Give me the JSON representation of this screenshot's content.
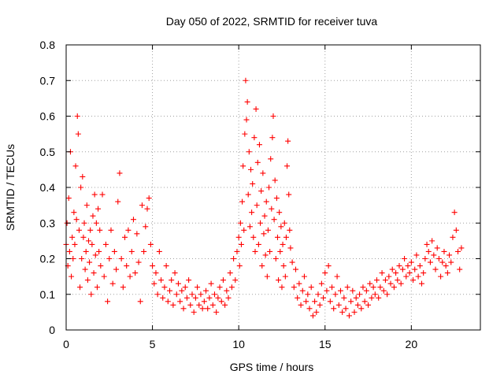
{
  "chart_data": {
    "type": "scatter",
    "title": "Day 050 of 2022, SRMTID for receiver tuva",
    "xlabel": "GPS time / hours",
    "ylabel": "SRMTID / TECUs",
    "xlim": [
      0,
      24
    ],
    "ylim": [
      0,
      0.8
    ],
    "xticks": [
      0,
      5,
      10,
      15,
      20
    ],
    "xtick_labels": [
      "0",
      "5",
      "10",
      "15",
      "20"
    ],
    "yticks": [
      0,
      0.1,
      0.2,
      0.3,
      0.4,
      0.5,
      0.6,
      0.7,
      0.8
    ],
    "ytick_labels": [
      "0",
      "0.1",
      "0.2",
      "0.3",
      "0.4",
      "0.5",
      "0.6",
      "0.7",
      "0.8"
    ],
    "grid": true,
    "marker": "+",
    "color": "#ff0000",
    "series": [
      {
        "name": "SRMTID",
        "points": [
          [
            0.0,
            0.24
          ],
          [
            0.05,
            0.3
          ],
          [
            0.1,
            0.18
          ],
          [
            0.15,
            0.37
          ],
          [
            0.2,
            0.22
          ],
          [
            0.25,
            0.5
          ],
          [
            0.3,
            0.15
          ],
          [
            0.35,
            0.26
          ],
          [
            0.4,
            0.2
          ],
          [
            0.45,
            0.33
          ],
          [
            0.5,
            0.24
          ],
          [
            0.55,
            0.46
          ],
          [
            0.6,
            0.31
          ],
          [
            0.65,
            0.6
          ],
          [
            0.7,
            0.55
          ],
          [
            0.75,
            0.28
          ],
          [
            0.8,
            0.12
          ],
          [
            0.85,
            0.4
          ],
          [
            0.9,
            0.2
          ],
          [
            0.95,
            0.43
          ],
          [
            1.0,
            0.26
          ],
          [
            1.05,
            0.3
          ],
          [
            1.1,
            0.17
          ],
          [
            1.15,
            0.22
          ],
          [
            1.2,
            0.35
          ],
          [
            1.25,
            0.14
          ],
          [
            1.3,
            0.25
          ],
          [
            1.35,
            0.19
          ],
          [
            1.4,
            0.28
          ],
          [
            1.45,
            0.1
          ],
          [
            1.5,
            0.24
          ],
          [
            1.55,
            0.32
          ],
          [
            1.6,
            0.16
          ],
          [
            1.65,
            0.38
          ],
          [
            1.7,
            0.21
          ],
          [
            1.75,
            0.3
          ],
          [
            1.8,
            0.12
          ],
          [
            1.85,
            0.34
          ],
          [
            1.9,
            0.22
          ],
          [
            1.95,
            0.28
          ],
          [
            2.0,
            0.18
          ],
          [
            2.1,
            0.38
          ],
          [
            2.2,
            0.15
          ],
          [
            2.3,
            0.24
          ],
          [
            2.4,
            0.08
          ],
          [
            2.5,
            0.2
          ],
          [
            2.6,
            0.28
          ],
          [
            2.7,
            0.13
          ],
          [
            2.8,
            0.22
          ],
          [
            2.9,
            0.17
          ],
          [
            3.0,
            0.36
          ],
          [
            3.1,
            0.44
          ],
          [
            3.2,
            0.2
          ],
          [
            3.3,
            0.12
          ],
          [
            3.4,
            0.26
          ],
          [
            3.5,
            0.18
          ],
          [
            3.6,
            0.28
          ],
          [
            3.7,
            0.15
          ],
          [
            3.8,
            0.22
          ],
          [
            3.9,
            0.31
          ],
          [
            4.0,
            0.16
          ],
          [
            4.1,
            0.27
          ],
          [
            4.2,
            0.19
          ],
          [
            4.3,
            0.08
          ],
          [
            4.4,
            0.35
          ],
          [
            4.5,
            0.22
          ],
          [
            4.6,
            0.29
          ],
          [
            4.7,
            0.34
          ],
          [
            4.8,
            0.37
          ],
          [
            4.9,
            0.24
          ],
          [
            5.0,
            0.18
          ],
          [
            5.1,
            0.13
          ],
          [
            5.2,
            0.16
          ],
          [
            5.3,
            0.1
          ],
          [
            5.4,
            0.22
          ],
          [
            5.5,
            0.14
          ],
          [
            5.6,
            0.09
          ],
          [
            5.7,
            0.12
          ],
          [
            5.8,
            0.18
          ],
          [
            5.9,
            0.08
          ],
          [
            6.0,
            0.11
          ],
          [
            6.1,
            0.14
          ],
          [
            6.2,
            0.07
          ],
          [
            6.3,
            0.16
          ],
          [
            6.4,
            0.1
          ],
          [
            6.5,
            0.13
          ],
          [
            6.6,
            0.08
          ],
          [
            6.7,
            0.11
          ],
          [
            6.8,
            0.06
          ],
          [
            6.9,
            0.12
          ],
          [
            7.0,
            0.09
          ],
          [
            7.1,
            0.14
          ],
          [
            7.2,
            0.07
          ],
          [
            7.3,
            0.1
          ],
          [
            7.4,
            0.05
          ],
          [
            7.5,
            0.09
          ],
          [
            7.6,
            0.12
          ],
          [
            7.7,
            0.07
          ],
          [
            7.8,
            0.1
          ],
          [
            7.9,
            0.06
          ],
          [
            8.0,
            0.08
          ],
          [
            8.1,
            0.11
          ],
          [
            8.2,
            0.06
          ],
          [
            8.3,
            0.09
          ],
          [
            8.4,
            0.13
          ],
          [
            8.5,
            0.07
          ],
          [
            8.6,
            0.1
          ],
          [
            8.7,
            0.05
          ],
          [
            8.8,
            0.09
          ],
          [
            8.9,
            0.12
          ],
          [
            9.0,
            0.08
          ],
          [
            9.1,
            0.14
          ],
          [
            9.2,
            0.07
          ],
          [
            9.3,
            0.11
          ],
          [
            9.4,
            0.09
          ],
          [
            9.5,
            0.16
          ],
          [
            9.6,
            0.12
          ],
          [
            9.7,
            0.2
          ],
          [
            9.8,
            0.14
          ],
          [
            9.9,
            0.22
          ],
          [
            10.0,
            0.26
          ],
          [
            10.05,
            0.18
          ],
          [
            10.1,
            0.3
          ],
          [
            10.15,
            0.24
          ],
          [
            10.2,
            0.36
          ],
          [
            10.25,
            0.46
          ],
          [
            10.3,
            0.28
          ],
          [
            10.35,
            0.55
          ],
          [
            10.4,
            0.7
          ],
          [
            10.45,
            0.59
          ],
          [
            10.5,
            0.64
          ],
          [
            10.55,
            0.38
          ],
          [
            10.6,
            0.5
          ],
          [
            10.65,
            0.29
          ],
          [
            10.7,
            0.45
          ],
          [
            10.75,
            0.33
          ],
          [
            10.8,
            0.41
          ],
          [
            10.85,
            0.26
          ],
          [
            10.9,
            0.54
          ],
          [
            10.95,
            0.22
          ],
          [
            11.0,
            0.62
          ],
          [
            11.05,
            0.35
          ],
          [
            11.1,
            0.47
          ],
          [
            11.15,
            0.24
          ],
          [
            11.2,
            0.52
          ],
          [
            11.25,
            0.3
          ],
          [
            11.3,
            0.39
          ],
          [
            11.35,
            0.18
          ],
          [
            11.4,
            0.44
          ],
          [
            11.45,
            0.27
          ],
          [
            11.5,
            0.32
          ],
          [
            11.55,
            0.21
          ],
          [
            11.6,
            0.36
          ],
          [
            11.65,
            0.15
          ],
          [
            11.7,
            0.28
          ],
          [
            11.75,
            0.4
          ],
          [
            11.8,
            0.22
          ],
          [
            11.85,
            0.48
          ],
          [
            11.9,
            0.34
          ],
          [
            11.95,
            0.54
          ],
          [
            12.0,
            0.6
          ],
          [
            12.05,
            0.31
          ],
          [
            12.1,
            0.42
          ],
          [
            12.15,
            0.2
          ],
          [
            12.2,
            0.37
          ],
          [
            12.25,
            0.26
          ],
          [
            12.3,
            0.14
          ],
          [
            12.35,
            0.33
          ],
          [
            12.4,
            0.22
          ],
          [
            12.45,
            0.29
          ],
          [
            12.5,
            0.12
          ],
          [
            12.55,
            0.24
          ],
          [
            12.6,
            0.18
          ],
          [
            12.65,
            0.3
          ],
          [
            12.7,
            0.15
          ],
          [
            12.75,
            0.26
          ],
          [
            12.8,
            0.46
          ],
          [
            12.85,
            0.53
          ],
          [
            12.9,
            0.38
          ],
          [
            12.95,
            0.28
          ],
          [
            13.0,
            0.23
          ],
          [
            13.1,
            0.19
          ],
          [
            13.2,
            0.12
          ],
          [
            13.3,
            0.17
          ],
          [
            13.4,
            0.09
          ],
          [
            13.5,
            0.13
          ],
          [
            13.6,
            0.07
          ],
          [
            13.7,
            0.11
          ],
          [
            13.8,
            0.15
          ],
          [
            13.9,
            0.08
          ],
          [
            14.0,
            0.1
          ],
          [
            14.1,
            0.06
          ],
          [
            14.2,
            0.12
          ],
          [
            14.3,
            0.04
          ],
          [
            14.4,
            0.08
          ],
          [
            14.5,
            0.05
          ],
          [
            14.6,
            0.1
          ],
          [
            14.7,
            0.07
          ],
          [
            14.8,
            0.13
          ],
          [
            14.9,
            0.09
          ],
          [
            15.0,
            0.16
          ],
          [
            15.1,
            0.11
          ],
          [
            15.2,
            0.18
          ],
          [
            15.3,
            0.08
          ],
          [
            15.4,
            0.12
          ],
          [
            15.5,
            0.06
          ],
          [
            15.6,
            0.1
          ],
          [
            15.7,
            0.15
          ],
          [
            15.8,
            0.07
          ],
          [
            15.9,
            0.11
          ],
          [
            16.0,
            0.05
          ],
          [
            16.1,
            0.09
          ],
          [
            16.2,
            0.06
          ],
          [
            16.3,
            0.12
          ],
          [
            16.4,
            0.04
          ],
          [
            16.5,
            0.08
          ],
          [
            16.6,
            0.11
          ],
          [
            16.7,
            0.05
          ],
          [
            16.8,
            0.09
          ],
          [
            16.9,
            0.07
          ],
          [
            17.0,
            0.1
          ],
          [
            17.1,
            0.06
          ],
          [
            17.2,
            0.12
          ],
          [
            17.3,
            0.08
          ],
          [
            17.4,
            0.11
          ],
          [
            17.5,
            0.07
          ],
          [
            17.6,
            0.13
          ],
          [
            17.7,
            0.09
          ],
          [
            17.8,
            0.12
          ],
          [
            17.9,
            0.1
          ],
          [
            18.0,
            0.14
          ],
          [
            18.1,
            0.09
          ],
          [
            18.2,
            0.12
          ],
          [
            18.3,
            0.16
          ],
          [
            18.4,
            0.11
          ],
          [
            18.5,
            0.14
          ],
          [
            18.6,
            0.1
          ],
          [
            18.7,
            0.15
          ],
          [
            18.8,
            0.13
          ],
          [
            18.9,
            0.17
          ],
          [
            19.0,
            0.12
          ],
          [
            19.1,
            0.16
          ],
          [
            19.2,
            0.14
          ],
          [
            19.3,
            0.18
          ],
          [
            19.4,
            0.13
          ],
          [
            19.5,
            0.17
          ],
          [
            19.6,
            0.2
          ],
          [
            19.7,
            0.15
          ],
          [
            19.8,
            0.18
          ],
          [
            19.9,
            0.16
          ],
          [
            20.0,
            0.19
          ],
          [
            20.1,
            0.14
          ],
          [
            20.2,
            0.17
          ],
          [
            20.3,
            0.21
          ],
          [
            20.4,
            0.15
          ],
          [
            20.5,
            0.18
          ],
          [
            20.6,
            0.13
          ],
          [
            20.7,
            0.16
          ],
          [
            20.8,
            0.2
          ],
          [
            20.9,
            0.24
          ],
          [
            21.0,
            0.22
          ],
          [
            21.1,
            0.19
          ],
          [
            21.2,
            0.25
          ],
          [
            21.3,
            0.21
          ],
          [
            21.4,
            0.17
          ],
          [
            21.5,
            0.23
          ],
          [
            21.6,
            0.2
          ],
          [
            21.7,
            0.15
          ],
          [
            21.8,
            0.19
          ],
          [
            21.9,
            0.22
          ],
          [
            22.0,
            0.18
          ],
          [
            22.1,
            0.16
          ],
          [
            22.2,
            0.21
          ],
          [
            22.3,
            0.19
          ],
          [
            22.4,
            0.26
          ],
          [
            22.5,
            0.33
          ],
          [
            22.6,
            0.28
          ],
          [
            22.7,
            0.22
          ],
          [
            22.8,
            0.17
          ],
          [
            22.9,
            0.23
          ]
        ]
      }
    ]
  }
}
